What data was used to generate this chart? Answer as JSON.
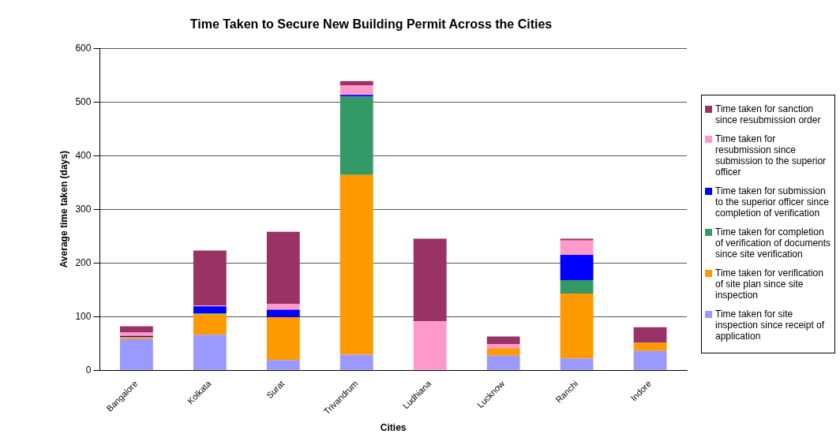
{
  "chart_data": {
    "type": "bar",
    "title": "Time Taken to Secure New Building Permit Across the Cities",
    "xlabel": "Cities",
    "ylabel": "Average time taken (days)",
    "categories": [
      "Bangalore",
      "Kolkata",
      "Surat",
      "Trivandrum",
      "Ludhiana",
      "Lucknow",
      "Ranchi",
      "Indore"
    ],
    "stacked": true,
    "ylim": [
      0,
      600
    ],
    "yticks": [
      0,
      100,
      200,
      300,
      400,
      500,
      600
    ],
    "grid": "y",
    "legend": "right",
    "series": [
      {
        "name": "Time taken for site inspection since receipt of application",
        "color": "#9999ff",
        "values": [
          58,
          66,
          19,
          29,
          0,
          27,
          22,
          36
        ]
      },
      {
        "name": "Time taken for verification of site plan since site inspection",
        "color": "#ff9900",
        "values": [
          4,
          38,
          80,
          335,
          0,
          14,
          121,
          15
        ]
      },
      {
        "name": "Time taken for completion of verification of documents since site verification",
        "color": "#339966",
        "values": [
          0,
          2,
          0,
          146,
          0,
          0,
          25,
          0
        ]
      },
      {
        "name": "Time taken for submission to the superior officer since completion of verification",
        "color": "#0000ff",
        "values": [
          2,
          13,
          14,
          3,
          0,
          0,
          47,
          0
        ]
      },
      {
        "name": "Time taken for resubmission since submission to the superior officer",
        "color": "#ff99cc",
        "values": [
          6,
          2,
          11,
          18,
          91,
          8,
          27,
          0
        ]
      },
      {
        "name": "Time taken for sanction since resubmission order",
        "color": "#993366",
        "values": [
          12,
          102,
          134,
          8,
          154,
          14,
          3,
          29
        ]
      }
    ]
  }
}
